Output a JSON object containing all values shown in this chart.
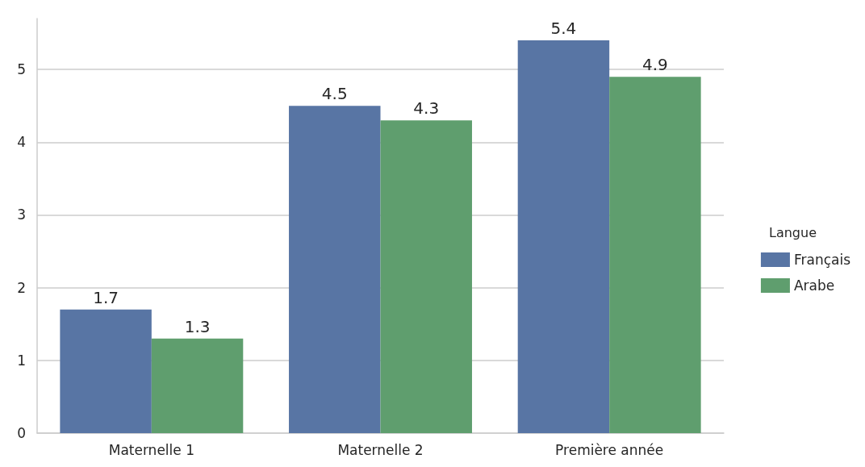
{
  "chart_data": {
    "type": "bar",
    "categories": [
      "Maternelle 1",
      "Maternelle 2",
      "Première année"
    ],
    "series": [
      {
        "name": "Français",
        "color": "#5875a4",
        "values": [
          1.7,
          4.5,
          5.4
        ]
      },
      {
        "name": "Arabe",
        "color": "#5f9e6e",
        "values": [
          1.3,
          4.3,
          4.9
        ]
      }
    ],
    "ylim": [
      0,
      5.7
    ],
    "yticks": [
      0,
      1,
      2,
      3,
      4,
      5
    ],
    "grid": "y",
    "legend": "right",
    "legend_title": "Langue",
    "data_labels": true
  }
}
